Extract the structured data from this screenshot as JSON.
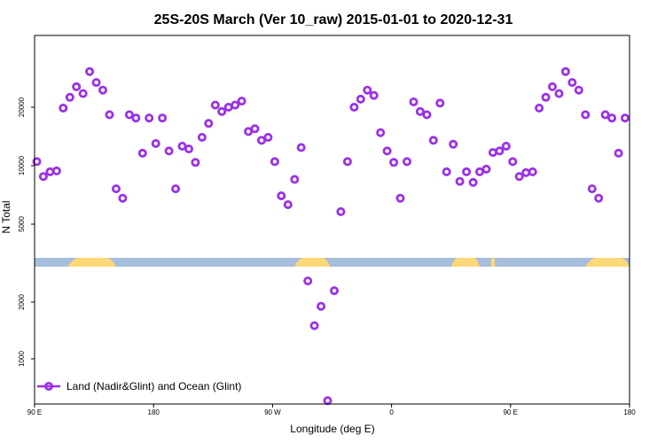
{
  "chart_data": {
    "type": "scatter",
    "title": "25S-20S March (Ver 10_raw)   2015-01-01 to 2020-12-31",
    "xlabel": "Longitude (deg E)",
    "ylabel": "N Total",
    "xlim": [
      -90,
      180
    ],
    "x_ticks": [
      {
        "value": -90,
        "label": "90 E"
      },
      {
        "value": -36,
        "label": "180"
      },
      {
        "value": 18,
        "label": "90 W"
      },
      {
        "value": 72,
        "label": "0"
      },
      {
        "value": 126,
        "label": "90 E"
      },
      {
        "value": 180,
        "label": "180"
      }
    ],
    "upper_y_ticks": [
      5000,
      10000,
      20000
    ],
    "lower_y_ticks": [
      1000,
      2000
    ],
    "surface_band": {
      "ocean_color": "#a6bddb",
      "land_color": "#fdd878",
      "land_segments": [
        [
          -75,
          -53
        ],
        [
          28,
          44
        ],
        [
          99,
          112
        ],
        [
          117,
          119
        ],
        [
          160,
          192
        ]
      ]
    },
    "series": [
      {
        "name": "Land (Nadir&Glint) and Ocean (Glint)",
        "color": "#9b30e6",
        "x": [
          -89,
          -86,
          -83,
          -80,
          -77,
          -74,
          -71,
          -68,
          -65,
          -62,
          -59,
          -56,
          -53,
          -50,
          -47,
          -44,
          -41,
          -38,
          -35,
          -32,
          -29,
          -26,
          -23,
          -20,
          -17,
          -14,
          -11,
          -8,
          -5,
          -2,
          1,
          4,
          7,
          10,
          13,
          16,
          19,
          22,
          25,
          28,
          31,
          34,
          37,
          40,
          43,
          46,
          49,
          52,
          55,
          58,
          61,
          64,
          67,
          70,
          73,
          76,
          79,
          82,
          85,
          88,
          91,
          94,
          97,
          100,
          103,
          106,
          109,
          112,
          115,
          118,
          121,
          124,
          127,
          130,
          133,
          136,
          139,
          142,
          145,
          148,
          151,
          154,
          157,
          160,
          163,
          166,
          169,
          172,
          175,
          178
        ],
        "y": [
          10500,
          8800,
          9300,
          9400,
          19800,
          22500,
          25500,
          23500,
          30500,
          26800,
          24500,
          18300,
          7600,
          6800,
          18300,
          17600,
          11600,
          17600,
          13000,
          17600,
          11900,
          7600,
          12600,
          12200,
          10400,
          14000,
          16500,
          20500,
          19000,
          20000,
          20500,
          21500,
          15000,
          15500,
          13500,
          14000,
          10500,
          7000,
          6300,
          8500,
          12400,
          2550,
          1500,
          1900,
          600,
          2300,
          5800,
          10500,
          20000,
          22000,
          24500,
          23000,
          14800,
          11900,
          10400,
          6800,
          10500,
          21300,
          19000,
          18300,
          13500,
          21000,
          9300,
          12900,
          8300,
          9300,
          8200,
          9300,
          9600,
          11700,
          11900,
          12600,
          10500,
          8800,
          9200,
          9300,
          19800,
          22500,
          25500,
          23500,
          30500,
          26800,
          24500,
          18300,
          7600,
          6800,
          18300,
          17600,
          11600,
          17600
        ]
      }
    ],
    "legend_position": "bottom-left",
    "grid": false
  }
}
